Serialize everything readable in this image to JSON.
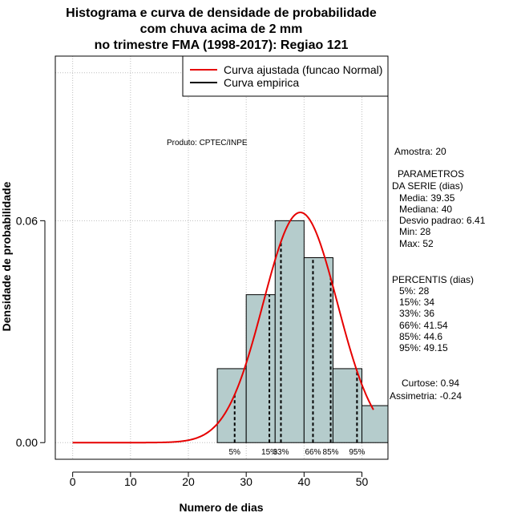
{
  "chart_data": {
    "type": "histogram",
    "title_lines": [
      "Histograma e curva de densidade de probabilidade",
      "com chuva acima de 2 mm",
      "no trimestre FMA (1998-2017): Regiao 121"
    ],
    "xlabel": "Numero de dias",
    "ylabel": "Densidade de probabilidade",
    "xlim": [
      -3,
      54.5
    ],
    "ylim": [
      -0.0045,
      0.1045
    ],
    "x_ticks": [
      0,
      10,
      20,
      30,
      40,
      50
    ],
    "x_tick_labels": [
      "0",
      "10",
      "20",
      "30",
      "40",
      "50"
    ],
    "y_ticks": [
      0.0,
      0.06
    ],
    "y_tick_labels": [
      "0.00",
      "0.06"
    ],
    "grid_x": [
      0,
      10,
      20,
      30,
      40,
      50
    ],
    "grid_y": [
      0.0,
      0.06,
      0.1
    ],
    "bars": [
      {
        "x0": 25,
        "x1": 30,
        "density": 0.02
      },
      {
        "x0": 30,
        "x1": 35,
        "density": 0.04
      },
      {
        "x0": 35,
        "x1": 40,
        "density": 0.06
      },
      {
        "x0": 40,
        "x1": 45,
        "density": 0.05
      },
      {
        "x0": 45,
        "x1": 50,
        "density": 0.02
      },
      {
        "x0": 50,
        "x1": 55,
        "density": 0.01
      }
    ],
    "normal_fit": {
      "mean": 39.35,
      "sd": 6.41,
      "x_from": 0,
      "x_to": 52
    },
    "percentile_lines": [
      {
        "label": "5%",
        "x": 28
      },
      {
        "label": "15%",
        "x": 34
      },
      {
        "label": "33%",
        "x": 36
      },
      {
        "label": "66%",
        "x": 41.54
      },
      {
        "label": "85%",
        "x": 44.6
      },
      {
        "label": "95%",
        "x": 49.15
      }
    ],
    "legend": {
      "placement": "top-right",
      "items": [
        {
          "label": "Curva ajustada (funcao Normal)",
          "color": "#e60000"
        },
        {
          "label": "Curva empirica",
          "color": "#000000"
        }
      ]
    },
    "product_label": "Produto: CPTEC/INPE",
    "colors": {
      "bar_fill": "#b5cccc",
      "curve": "#e60000",
      "grid": "#bebebe"
    }
  },
  "stats": {
    "amostra": "Amostra: 20",
    "params_header1": "PARAMETROS",
    "params_header2": "DA SERIE (dias)",
    "media": "Media: 39.35",
    "mediana": "Mediana: 40",
    "desvio": "Desvio padrao: 6.41",
    "min": "Min: 28",
    "max": "Max: 52",
    "percentis_header": "PERCENTIS (dias)",
    "p5": "5%: 28",
    "p15": "15%: 34",
    "p33": "33%: 36",
    "p66": "66%: 41.54",
    "p85": "85%: 44.6",
    "p95": "95%: 49.15",
    "curtose": "Curtose: 0.94",
    "assimetria": "Assimetria: -0.24"
  }
}
